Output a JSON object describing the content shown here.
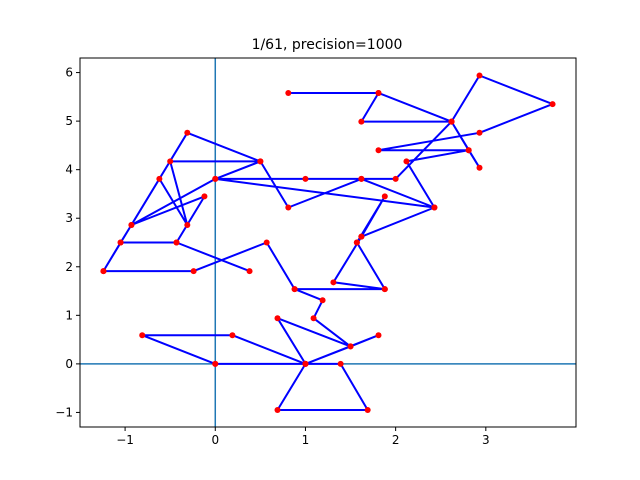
{
  "chart_data": {
    "type": "line",
    "title": "1/61, precision=1000",
    "xlabel": "",
    "ylabel": "",
    "xlim": [
      -1.5,
      4.0
    ],
    "ylim": [
      -1.3,
      6.3
    ],
    "xticks": [
      -1,
      0,
      1,
      2,
      3
    ],
    "yticks": [
      -1,
      0,
      1,
      2,
      3,
      4,
      5,
      6
    ],
    "xtick_labels": [
      "−1",
      "0",
      "1",
      "2",
      "3"
    ],
    "ytick_labels": [
      "−1",
      "0",
      "1",
      "2",
      "3",
      "4",
      "5",
      "6"
    ],
    "grid": false,
    "legend": "none",
    "reference_lines": {
      "x": 0,
      "y": 0,
      "color": "#1f77b4"
    },
    "series": [
      {
        "line_color": "#0000ff",
        "marker_color": "#ff0000",
        "points": [
          [
            0,
            0
          ],
          [
            1,
            0
          ],
          [
            0.69,
            0.94
          ],
          [
            1.5,
            0.36
          ],
          [
            1.81,
            0.59
          ],
          [
            1.0,
            0
          ],
          [
            1.39,
            0
          ],
          [
            1.69,
            -0.95
          ],
          [
            0.69,
            -0.95
          ],
          [
            1.0,
            0
          ],
          [
            0.19,
            0.59
          ],
          [
            -0.81,
            0.59
          ],
          [
            0,
            0
          ],
          [
            1.0,
            0
          ],
          [
            1.5,
            0.36
          ],
          [
            1.09,
            0.94
          ],
          [
            1.19,
            1.31
          ],
          [
            0.88,
            1.54
          ],
          [
            1.88,
            1.54
          ],
          [
            1.57,
            2.5
          ],
          [
            1.88,
            3.45
          ],
          [
            1.62,
            2.62
          ],
          [
            1.31,
            1.68
          ],
          [
            1.88,
            1.54
          ],
          [
            0.88,
            1.54
          ],
          [
            0.57,
            2.5
          ],
          [
            -0.24,
            1.91
          ],
          [
            -1.24,
            1.91
          ],
          [
            -1.05,
            2.5
          ],
          [
            -0.43,
            2.5
          ],
          [
            0.38,
            1.91
          ],
          [
            -0.43,
            2.5
          ],
          [
            -0.12,
            3.45
          ],
          [
            -0.93,
            2.86
          ],
          [
            -0.62,
            3.81
          ],
          [
            -0.31,
            2.86
          ],
          [
            -0.5,
            4.17
          ],
          [
            0.5,
            4.17
          ],
          [
            -0.31,
            4.76
          ],
          [
            -1.24,
            1.91
          ],
          [
            -1.05,
            2.5
          ],
          [
            -0.93,
            2.86
          ],
          [
            0,
            3.81
          ],
          [
            1.0,
            3.81
          ],
          [
            1.62,
            3.81
          ],
          [
            2.43,
            3.22
          ],
          [
            2.12,
            4.17
          ],
          [
            2.81,
            4.4
          ],
          [
            2.62,
            4.99
          ],
          [
            1.62,
            4.99
          ],
          [
            1.81,
            5.58
          ],
          [
            0.81,
            5.58
          ],
          [
            1.81,
            5.58
          ],
          [
            2.62,
            4.99
          ],
          [
            2.93,
            5.94
          ],
          [
            3.74,
            5.35
          ],
          [
            2.93,
            4.76
          ],
          [
            1.81,
            4.4
          ],
          [
            2.81,
            4.4
          ],
          [
            2.93,
            4.04
          ],
          [
            2.62,
            4.99
          ],
          [
            2.0,
            3.81
          ],
          [
            1.62,
            3.81
          ],
          [
            0.81,
            3.22
          ],
          [
            0.5,
            4.17
          ],
          [
            0,
            3.81
          ],
          [
            2.43,
            3.22
          ],
          [
            1.62,
            2.62
          ],
          [
            1.57,
            2.5
          ]
        ]
      }
    ]
  }
}
